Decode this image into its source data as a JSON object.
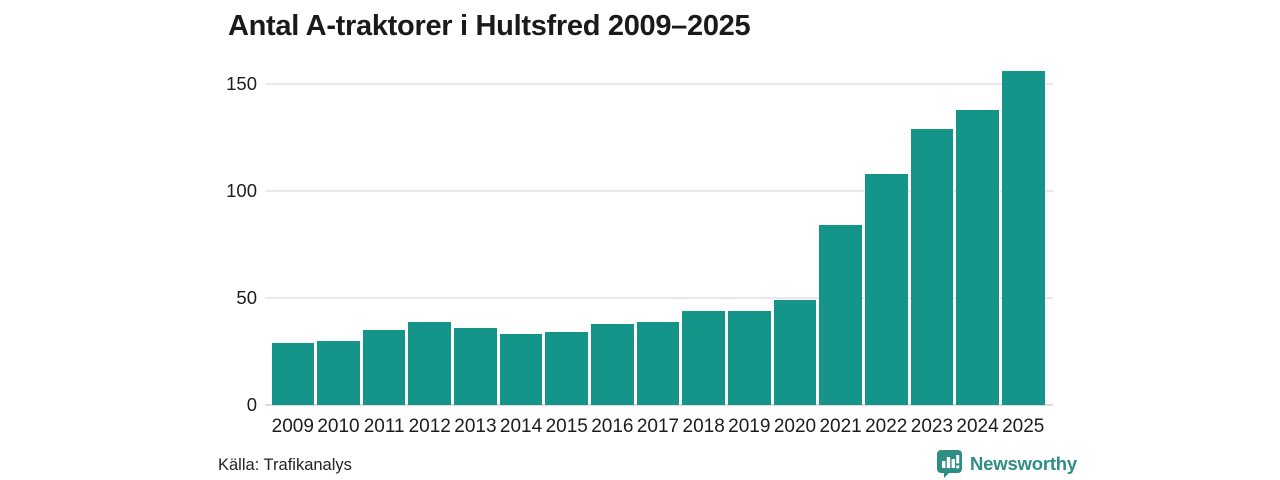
{
  "title": "Antal A-traktorer i Hultsfred 2009–2025",
  "source": "Källa: Trafikanalys",
  "brand": {
    "name": "Newsworthy",
    "icon": "newsworthy-speech-bubble-barchart-icon",
    "color": "#2f8d84"
  },
  "colors": {
    "bar": "#159489",
    "grid": "#e8e8ee",
    "baseline": "#dcdce2",
    "title_text": "#1a1a1a",
    "axis_text": "#1c1c1c"
  },
  "chart_data": {
    "type": "bar",
    "title": "Antal A-traktorer i Hultsfred 2009–2025",
    "categories": [
      "2009",
      "2010",
      "2011",
      "2012",
      "2013",
      "2014",
      "2015",
      "2016",
      "2017",
      "2018",
      "2019",
      "2020",
      "2021",
      "2022",
      "2023",
      "2024",
      "2025"
    ],
    "values": [
      29,
      30,
      35,
      39,
      36,
      33,
      34,
      38,
      39,
      44,
      44,
      49,
      84,
      108,
      129,
      138,
      156
    ],
    "xlabel": "",
    "ylabel": "",
    "ylim": [
      0,
      160
    ],
    "yticks": [
      0,
      50,
      100,
      150
    ],
    "grid": "horizontal-only",
    "legend": "none",
    "bar_color": "#159489"
  }
}
